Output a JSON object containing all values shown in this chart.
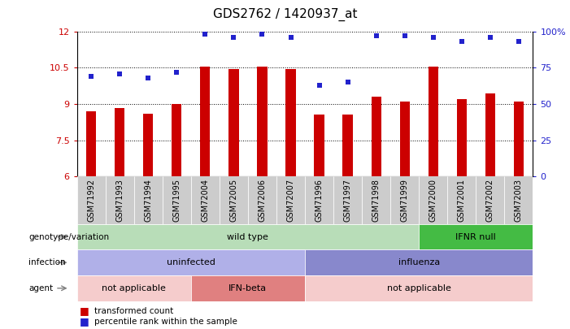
{
  "title": "GDS2762 / 1420937_at",
  "samples": [
    "GSM71992",
    "GSM71993",
    "GSM71994",
    "GSM71995",
    "GSM72004",
    "GSM72005",
    "GSM72006",
    "GSM72007",
    "GSM71996",
    "GSM71997",
    "GSM71998",
    "GSM71999",
    "GSM72000",
    "GSM72001",
    "GSM72002",
    "GSM72003"
  ],
  "transformed_count": [
    8.7,
    8.82,
    8.6,
    9.0,
    10.55,
    10.45,
    10.55,
    10.45,
    8.55,
    8.55,
    9.3,
    9.1,
    10.55,
    9.2,
    9.45,
    9.1
  ],
  "percentile_rank": [
    69,
    71,
    68,
    72,
    98,
    96,
    98,
    96,
    63,
    65,
    97,
    97,
    96,
    93,
    96,
    93
  ],
  "bar_color": "#cc0000",
  "dot_color": "#2222cc",
  "ylim_left": [
    6,
    12
  ],
  "ylim_right": [
    0,
    100
  ],
  "yticks_left": [
    6,
    7.5,
    9,
    10.5,
    12
  ],
  "yticks_right": [
    0,
    25,
    50,
    75,
    100
  ],
  "genotype_segments": [
    {
      "text": "wild type",
      "start": 0,
      "end": 11,
      "color": "#b8ddb8"
    },
    {
      "text": "IFNR null",
      "start": 12,
      "end": 15,
      "color": "#44bb44"
    }
  ],
  "infection_segments": [
    {
      "text": "uninfected",
      "start": 0,
      "end": 7,
      "color": "#b0b0e8"
    },
    {
      "text": "influenza",
      "start": 8,
      "end": 15,
      "color": "#8888cc"
    }
  ],
  "agent_segments": [
    {
      "text": "not applicable",
      "start": 0,
      "end": 3,
      "color": "#f5cccc"
    },
    {
      "text": "IFN-beta",
      "start": 4,
      "end": 7,
      "color": "#e08080"
    },
    {
      "text": "not applicable",
      "start": 8,
      "end": 15,
      "color": "#f5cccc"
    }
  ],
  "row_labels": [
    "genotype/variation",
    "infection",
    "agent"
  ],
  "legend": [
    {
      "color": "#cc0000",
      "label": "transformed count"
    },
    {
      "color": "#2222cc",
      "label": "percentile rank within the sample"
    }
  ],
  "xtick_bg": "#cccccc"
}
